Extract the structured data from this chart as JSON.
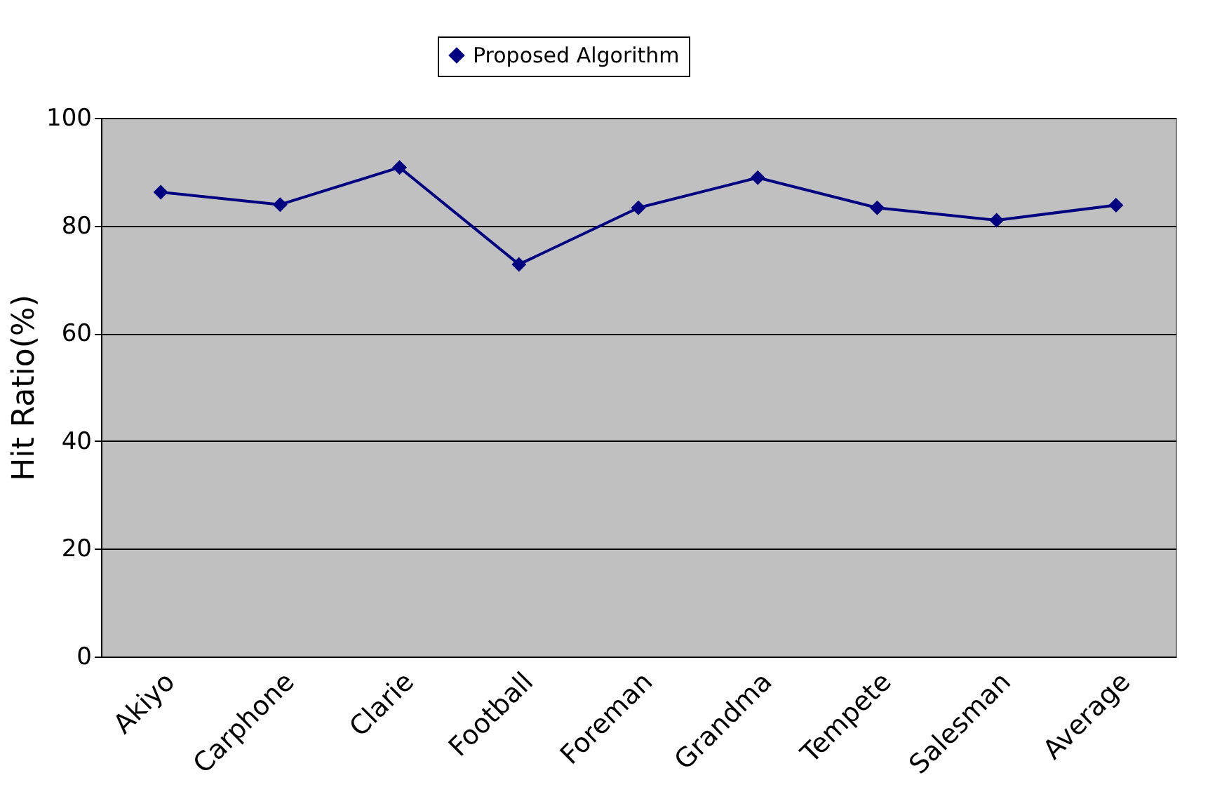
{
  "chart_data": {
    "type": "line",
    "ylabel": "Hit Ratio(%)",
    "categories": [
      "Akiyo",
      "Carphone",
      "Clarie",
      "Football",
      "Foreman",
      "Grandma",
      "Tempete",
      "Salesman",
      "Average"
    ],
    "series": [
      {
        "name": "Proposed Algorithm",
        "color": "#000080",
        "values": [
          86.2,
          83.9,
          90.8,
          72.8,
          83.3,
          88.9,
          83.3,
          81.0,
          83.8
        ]
      }
    ],
    "ylim": [
      0,
      100
    ],
    "yticks": [
      0,
      20,
      40,
      60,
      80,
      100
    ],
    "grid": "y",
    "legend": "top",
    "marker": "diamond",
    "line_style": "solid"
  }
}
